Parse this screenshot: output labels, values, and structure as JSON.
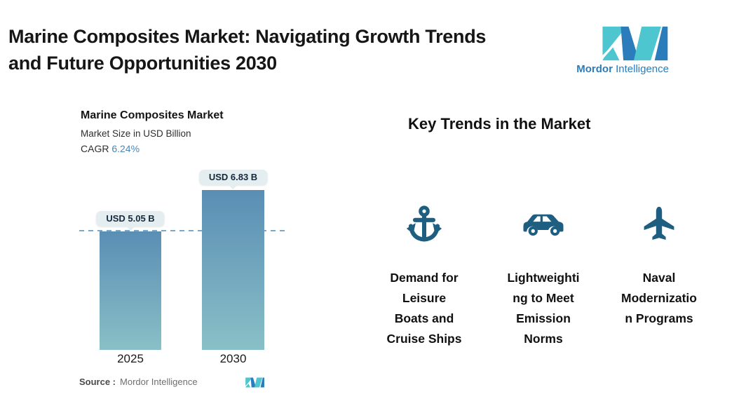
{
  "header": {
    "title_line1": "Marine Composites Market: Navigating Growth Trends",
    "title_line2": "and Future Opportunities 2030",
    "logo": {
      "brand_bold": "Mordor",
      "brand_regular": "Intelligence",
      "teal": "#4ec6d0",
      "blue": "#2a7cbb"
    }
  },
  "chart": {
    "title": "Marine Composites Market",
    "subtitle": "Market Size in USD Billion",
    "cagr_label": "CAGR",
    "cagr_value": "6.24%",
    "source_label": "Source :",
    "source_value": "Mordor Intelligence",
    "colors": {
      "bar_top": "#5a8eb4",
      "bar_bottom": "#89c0c7",
      "dashed_line": "#79a8cb",
      "callout_bg": "#e4edf0",
      "cagr_value": "#4d87b1",
      "icon": "#1e5e80"
    }
  },
  "chart_data": {
    "type": "bar",
    "title": "Marine Composites Market",
    "subtitle": "Market Size in USD Billion",
    "unit": "USD Billion",
    "cagr": "6.24%",
    "categories": [
      "2025",
      "2030"
    ],
    "values": [
      5.05,
      6.83
    ],
    "value_labels": [
      "USD 5.05 B",
      "USD 6.83 B"
    ],
    "reference_line": 5.05,
    "ylim": [
      0,
      7.5
    ],
    "grid": "off",
    "source": "Mordor Intelligence"
  },
  "trends": {
    "heading": "Key Trends in the Market",
    "items": [
      {
        "icon": "anchor-icon",
        "label": "Demand for Leisure Boats and Cruise Ships",
        "lines": [
          "Demand for",
          "Leisure",
          "Boats and",
          "Cruise Ships"
        ]
      },
      {
        "icon": "car-icon",
        "label": "Lightweighting to Meet Emission Norms",
        "lines": [
          "Lightweighti",
          "ng to Meet",
          "Emission",
          "Norms"
        ]
      },
      {
        "icon": "plane-icon",
        "label": "Naval Modernization Programs",
        "lines": [
          "Naval",
          "Modernizatio",
          "n Programs"
        ]
      }
    ]
  }
}
